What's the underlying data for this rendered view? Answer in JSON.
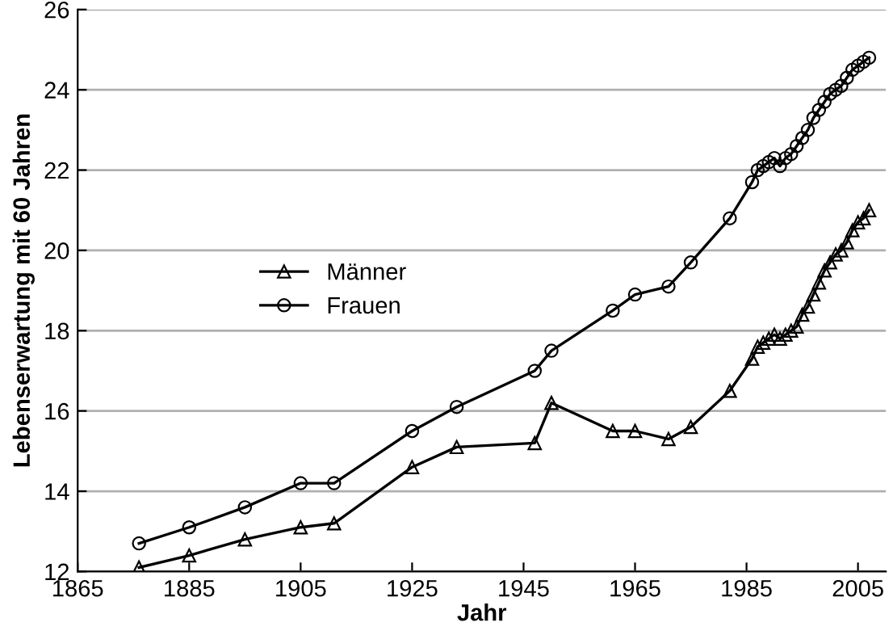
{
  "chart_data": {
    "type": "line",
    "xlabel": "Jahr",
    "ylabel": "Lebenserwartung mit 60 Jahren",
    "x": [
      1876,
      1885,
      1895,
      1905,
      1911,
      1925,
      1933,
      1947,
      1950,
      1961,
      1965,
      1971,
      1975,
      1982,
      1986,
      1987,
      1988,
      1989,
      1990,
      1991,
      1992,
      1993,
      1994,
      1995,
      1996,
      1997,
      1998,
      1999,
      2000,
      2001,
      2002,
      2003,
      2004,
      2005,
      2006,
      2007
    ],
    "series": [
      {
        "name": "Männer",
        "color": "#000000",
        "marker": "triangle",
        "values": [
          12.1,
          12.4,
          12.8,
          13.1,
          13.2,
          14.6,
          15.1,
          15.2,
          16.2,
          15.5,
          15.5,
          15.3,
          15.6,
          16.5,
          17.3,
          17.6,
          17.7,
          17.8,
          17.9,
          17.8,
          17.9,
          18.0,
          18.1,
          18.4,
          18.6,
          18.9,
          19.2,
          19.5,
          19.7,
          19.9,
          20.0,
          20.2,
          20.5,
          20.7,
          20.8,
          21.0
        ]
      },
      {
        "name": "Frauen",
        "color": "#000000",
        "marker": "circle",
        "values": [
          12.7,
          13.1,
          13.6,
          14.2,
          14.2,
          15.5,
          16.1,
          17.0,
          17.5,
          18.5,
          18.9,
          19.1,
          19.7,
          20.8,
          21.7,
          22.0,
          22.1,
          22.2,
          22.3,
          22.1,
          22.3,
          22.4,
          22.6,
          22.8,
          23.0,
          23.3,
          23.5,
          23.7,
          23.9,
          24.0,
          24.1,
          24.3,
          24.5,
          24.6,
          24.7,
          24.8
        ]
      }
    ],
    "xlim": [
      1865,
      2010
    ],
    "xticks": [
      1865,
      1885,
      1905,
      1925,
      1945,
      1965,
      1985,
      2005
    ],
    "ylim": [
      12,
      26
    ],
    "yticks": [
      12,
      14,
      16,
      18,
      20,
      22,
      24,
      26
    ],
    "grid": "y",
    "legend": "left",
    "line_style": "solid"
  }
}
